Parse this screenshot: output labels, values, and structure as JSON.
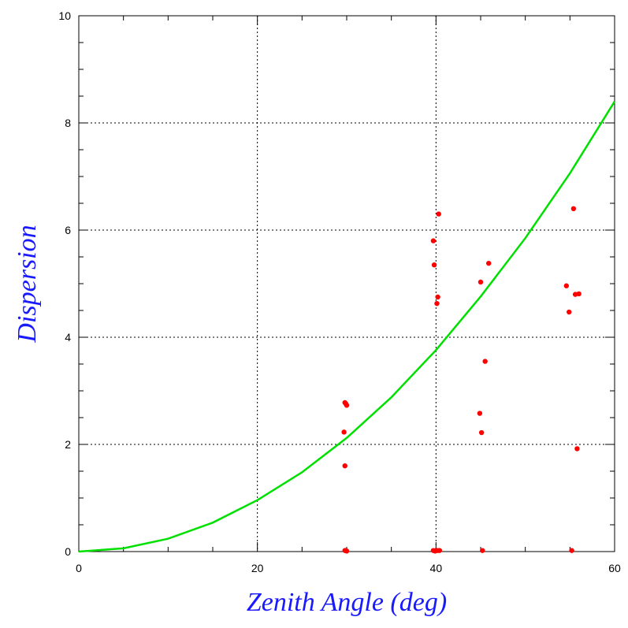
{
  "chart_data": {
    "type": "scatter",
    "title": "",
    "xlabel": "Zenith Angle (deg)",
    "ylabel": "Dispersion",
    "xlim": [
      0,
      60
    ],
    "ylim": [
      0,
      10
    ],
    "xticks": [
      0,
      20,
      40,
      60
    ],
    "yticks": [
      0,
      2,
      4,
      6,
      8,
      10
    ],
    "x_tick_labels": [
      "0",
      "20",
      "40",
      "60"
    ],
    "y_tick_labels": [
      "0",
      "2",
      "4",
      "6",
      "8",
      "10"
    ],
    "grid": true,
    "grid_style": "dotted",
    "colors": {
      "points": "#ff0000",
      "curve": "#00e000",
      "axis_labels": "#1a1aff"
    },
    "series": [
      {
        "kind": "scatter",
        "points": [
          [
            29.8,
            0.02
          ],
          [
            29.9,
            0.02
          ],
          [
            30.0,
            0.01
          ],
          [
            29.7,
            2.23
          ],
          [
            29.8,
            1.6
          ],
          [
            29.8,
            2.78
          ],
          [
            29.9,
            2.76
          ],
          [
            30.0,
            2.73
          ],
          [
            39.7,
            0.02
          ],
          [
            39.9,
            0.01
          ],
          [
            40.0,
            0.02
          ],
          [
            40.2,
            0.02
          ],
          [
            40.4,
            0.02
          ],
          [
            39.7,
            5.8
          ],
          [
            39.8,
            5.35
          ],
          [
            40.1,
            4.63
          ],
          [
            40.2,
            4.75
          ],
          [
            40.3,
            6.3
          ],
          [
            45.0,
            5.03
          ],
          [
            45.1,
            2.22
          ],
          [
            45.2,
            0.02
          ],
          [
            44.9,
            2.58
          ],
          [
            45.5,
            3.55
          ],
          [
            45.9,
            5.38
          ],
          [
            54.6,
            4.96
          ],
          [
            54.9,
            4.47
          ],
          [
            55.2,
            0.02
          ],
          [
            55.4,
            6.4
          ],
          [
            55.6,
            4.8
          ],
          [
            55.8,
            1.92
          ],
          [
            56.0,
            4.81
          ]
        ]
      },
      {
        "kind": "curve",
        "x": [
          0,
          5,
          10,
          15,
          20,
          25,
          30,
          35,
          40,
          45,
          50,
          55,
          60
        ],
        "y": [
          0.0,
          0.06,
          0.24,
          0.54,
          0.96,
          1.48,
          2.12,
          2.88,
          3.76,
          4.76,
          5.85,
          7.06,
          8.4
        ]
      }
    ]
  }
}
